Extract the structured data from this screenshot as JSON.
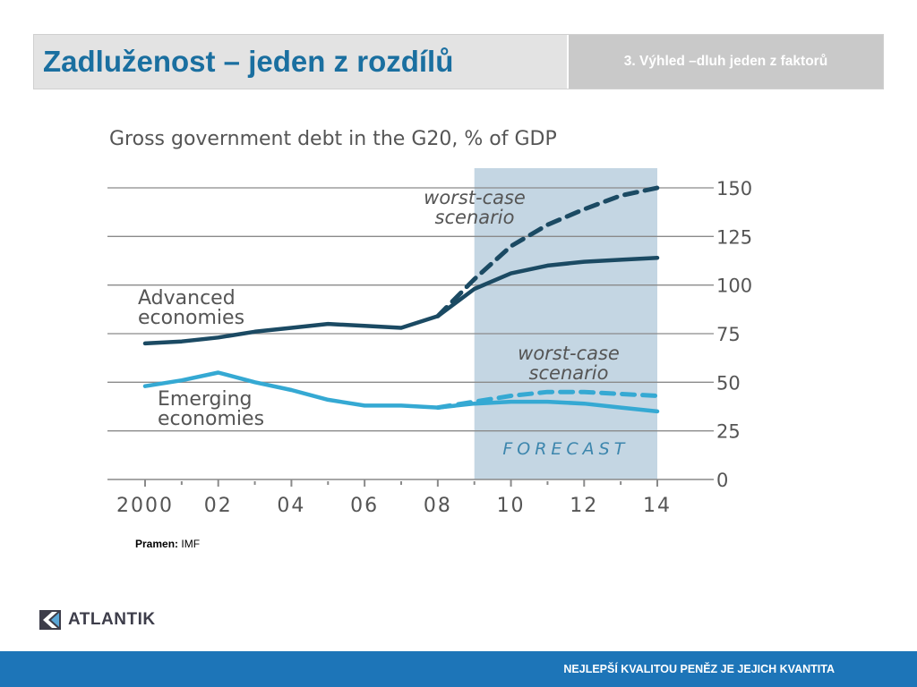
{
  "header": {
    "title": "Zadluženost – jeden z rozdílů",
    "subtitle": "3. Výhled –dluh jeden z faktorů"
  },
  "chart_data": {
    "type": "line",
    "title": "Gross government debt in the G20, % of GDP",
    "x": [
      2000,
      2001,
      2002,
      2003,
      2004,
      2005,
      2006,
      2007,
      2008,
      2009,
      2010,
      2011,
      2012,
      2013,
      2014
    ],
    "x_tick_labels": [
      "2000",
      "02",
      "04",
      "06",
      "08",
      "10",
      "12",
      "14"
    ],
    "x_tick_values": [
      2000,
      2002,
      2004,
      2006,
      2008,
      2010,
      2012,
      2014
    ],
    "y_ticks": [
      0,
      25,
      50,
      75,
      100,
      125,
      150
    ],
    "ylim": [
      0,
      150
    ],
    "y_axis_position": "right",
    "grid": true,
    "forecast_range": [
      2009,
      2014
    ],
    "forecast_label": "FORECAST",
    "series": [
      {
        "name": "Advanced economies",
        "style": "solid",
        "color": "#1b4a63",
        "x": [
          2000,
          2001,
          2002,
          2003,
          2004,
          2005,
          2006,
          2007,
          2008,
          2009,
          2010,
          2011,
          2012,
          2013,
          2014
        ],
        "values": [
          70,
          71,
          73,
          76,
          78,
          80,
          79,
          78,
          84,
          98,
          106,
          110,
          112,
          113,
          114
        ]
      },
      {
        "name": "Advanced economies worst-case scenario",
        "label": "worst-case\nscenario",
        "style": "dashed",
        "color": "#1b4a63",
        "x": [
          2008,
          2009,
          2010,
          2011,
          2012,
          2013,
          2014
        ],
        "values": [
          84,
          103,
          120,
          131,
          139,
          146,
          150
        ]
      },
      {
        "name": "Emerging economies",
        "style": "solid",
        "color": "#35a9d3",
        "x": [
          2000,
          2001,
          2002,
          2003,
          2004,
          2005,
          2006,
          2007,
          2008,
          2009,
          2010,
          2011,
          2012,
          2013,
          2014
        ],
        "values": [
          48,
          51,
          55,
          50,
          46,
          41,
          38,
          38,
          37,
          39,
          40,
          40,
          39,
          37,
          35
        ]
      },
      {
        "name": "Emerging economies worst-case scenario",
        "label": "worst-case\nscenario",
        "style": "dashed",
        "color": "#35a9d3",
        "x": [
          2008,
          2009,
          2010,
          2011,
          2012,
          2013,
          2014
        ],
        "values": [
          37,
          40,
          43,
          45,
          45,
          44,
          43
        ]
      }
    ],
    "annotations": [
      {
        "text": "Advanced\neconomies",
        "series": "Advanced economies"
      },
      {
        "text": "Emerging\neconomies",
        "series": "Emerging economies"
      }
    ]
  },
  "source": {
    "label": "Pramen:",
    "value": "IMF"
  },
  "logo": {
    "text": "ATLANTIK"
  },
  "footer": {
    "slogan": "NEJLEPŠÍ KVALITOU PENĚZ JE JEJICH KVANTITA"
  },
  "colors": {
    "title": "#1a6fa0",
    "footer_bar": "#1d75b8",
    "forecast_band": "#c4d6e3",
    "advanced": "#1b4a63",
    "emerging": "#35a9d3"
  }
}
